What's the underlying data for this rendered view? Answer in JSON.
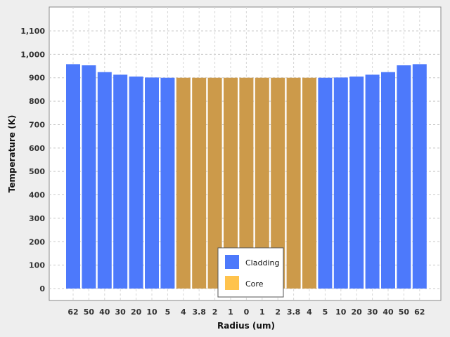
{
  "chart_data": {
    "type": "bar",
    "xlabel": "Radius (um)",
    "ylabel": "Temperature (K)",
    "ylim": [
      0,
      1100
    ],
    "yticks": [
      "0",
      "100",
      "200",
      "300",
      "400",
      "500",
      "600",
      "700",
      "800",
      "900",
      "1,000",
      "1,100"
    ],
    "categories": [
      "62",
      "50",
      "40",
      "30",
      "20",
      "10",
      "5",
      "4",
      "3.8",
      "2",
      "1",
      "0",
      "1",
      "2",
      "3.8",
      "4",
      "5",
      "10",
      "20",
      "30",
      "40",
      "50",
      "62"
    ],
    "series": [
      {
        "name": "Cladding",
        "color": "#4d79fb",
        "values": [
          958,
          953,
          924,
          913,
          905,
          901,
          900,
          null,
          null,
          null,
          null,
          null,
          null,
          null,
          null,
          null,
          900,
          901,
          905,
          913,
          924,
          953,
          958
        ]
      },
      {
        "name": "Core",
        "color": "#cc9a4a",
        "values": [
          null,
          null,
          null,
          null,
          null,
          null,
          null,
          900,
          900,
          900,
          900,
          900,
          900,
          900,
          900,
          900,
          null,
          null,
          null,
          null,
          null,
          null,
          null
        ]
      }
    ],
    "legend": {
      "placement": "bottom-center",
      "entries": [
        {
          "label": "Cladding",
          "color": "#4d79fb"
        },
        {
          "label": "Core",
          "color": "#ffc34d"
        }
      ]
    },
    "grid": true
  }
}
